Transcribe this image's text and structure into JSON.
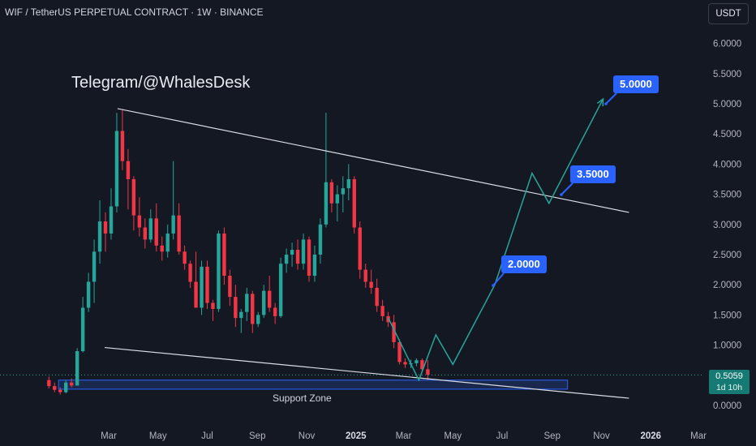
{
  "header": {
    "title": "WIF / TetherUS PERPETUAL CONTRACT · 1W · BINANCE",
    "currency_button": "USDT"
  },
  "watermark": "Telegram/@WhalesDesk",
  "colors": {
    "background": "#141823",
    "up_candle": "#26a69a",
    "down_candle": "#f23645",
    "projection": "#26a69a",
    "target_label": "#2962ff",
    "trendline": "#d9dce3",
    "zone_fill": "#1e2d5c",
    "zone_border": "#2962ff",
    "current_price_line": "#26a69a"
  },
  "annotations": {
    "support_zone_label": "Support Zone",
    "targets": [
      {
        "label": "5.0000",
        "price": 5.0
      },
      {
        "label": "3.5000",
        "price": 3.5
      },
      {
        "label": "2.0000",
        "price": 2.0
      }
    ],
    "current_price": "0.5059",
    "countdown": "1d 10h"
  },
  "chart_data": {
    "type": "candlestick",
    "title": "WIF / TetherUS PERPETUAL CONTRACT · 1W · BINANCE",
    "y_axis": {
      "ticks": [
        "6.0000",
        "5.5000",
        "5.0000",
        "4.5000",
        "4.0000",
        "3.5000",
        "3.0000",
        "2.5000",
        "2.0000",
        "1.5000",
        "1.0000",
        "0.0000"
      ],
      "tick_values": [
        6.0,
        5.5,
        5.0,
        4.5,
        4.0,
        3.5,
        3.0,
        2.5,
        2.0,
        1.5,
        1.0,
        0.0
      ],
      "ylim": [
        -0.1,
        6.3
      ],
      "side": "right"
    },
    "x_axis": {
      "ticks": [
        "Mar",
        "May",
        "Jul",
        "Sep",
        "Nov",
        "2025",
        "Mar",
        "May",
        "Jul",
        "Sep",
        "Nov",
        "2026",
        "Mar"
      ],
      "bold_ticks": [
        "2025",
        "2026"
      ],
      "tick_dates": [
        "2024-03-01",
        "2024-05-01",
        "2024-07-01",
        "2024-09-01",
        "2024-11-01",
        "2025-01-01",
        "2025-03-01",
        "2025-05-01",
        "2025-07-01",
        "2025-09-01",
        "2025-11-01",
        "2026-01-01",
        "2026-03-01"
      ],
      "xlim": [
        "2023-12-01",
        "2026-04-15"
      ]
    },
    "candles_ohlc": [
      [
        0.42,
        0.48,
        0.28,
        0.32
      ],
      [
        0.32,
        0.38,
        0.22,
        0.26
      ],
      [
        0.26,
        0.3,
        0.18,
        0.22
      ],
      [
        0.22,
        0.42,
        0.2,
        0.38
      ],
      [
        0.38,
        0.45,
        0.3,
        0.33
      ],
      [
        0.33,
        0.95,
        0.33,
        0.9
      ],
      [
        0.9,
        1.8,
        0.88,
        1.62
      ],
      [
        1.62,
        2.2,
        1.55,
        2.05
      ],
      [
        2.05,
        2.75,
        1.7,
        2.55
      ],
      [
        2.55,
        3.4,
        2.35,
        3.05
      ],
      [
        3.05,
        3.2,
        2.55,
        2.85
      ],
      [
        2.85,
        3.6,
        2.75,
        3.3
      ],
      [
        3.3,
        4.85,
        3.2,
        4.55
      ],
      [
        4.55,
        4.9,
        3.9,
        4.05
      ],
      [
        4.05,
        4.25,
        3.25,
        3.75
      ],
      [
        3.75,
        3.8,
        2.9,
        3.15
      ],
      [
        3.15,
        3.45,
        2.8,
        2.95
      ],
      [
        2.95,
        3.1,
        2.6,
        2.75
      ],
      [
        2.75,
        3.25,
        2.7,
        3.1
      ],
      [
        3.1,
        3.35,
        2.55,
        2.65
      ],
      [
        2.65,
        2.8,
        2.4,
        2.55
      ],
      [
        2.55,
        3.0,
        2.45,
        2.85
      ],
      [
        2.85,
        4.05,
        2.75,
        3.15
      ],
      [
        3.15,
        3.35,
        2.5,
        2.55
      ],
      [
        2.55,
        2.65,
        2.25,
        2.35
      ],
      [
        2.35,
        2.4,
        1.95,
        2.05
      ],
      [
        2.05,
        2.55,
        1.8,
        1.62
      ],
      [
        1.62,
        2.4,
        1.5,
        2.3
      ],
      [
        2.3,
        2.4,
        1.6,
        1.7
      ],
      [
        1.7,
        1.75,
        1.4,
        1.6
      ],
      [
        1.6,
        2.9,
        1.55,
        2.85
      ],
      [
        2.85,
        2.95,
        2.0,
        2.15
      ],
      [
        2.15,
        2.25,
        1.65,
        1.8
      ],
      [
        1.8,
        2.0,
        1.3,
        1.45
      ],
      [
        1.45,
        1.6,
        1.2,
        1.55
      ],
      [
        1.55,
        1.95,
        1.4,
        1.85
      ],
      [
        1.85,
        1.9,
        1.2,
        1.35
      ],
      [
        1.35,
        1.55,
        1.3,
        1.5
      ],
      [
        1.5,
        2.0,
        1.45,
        1.9
      ],
      [
        1.9,
        2.15,
        1.55,
        1.62
      ],
      [
        1.62,
        1.7,
        1.35,
        1.48
      ],
      [
        1.48,
        2.45,
        1.45,
        2.35
      ],
      [
        2.35,
        2.6,
        2.2,
        2.5
      ],
      [
        2.5,
        2.7,
        2.3,
        2.58
      ],
      [
        2.58,
        2.75,
        2.25,
        2.35
      ],
      [
        2.35,
        2.85,
        2.25,
        2.75
      ],
      [
        2.75,
        2.8,
        2.05,
        2.15
      ],
      [
        2.15,
        2.65,
        2.05,
        2.5
      ],
      [
        2.5,
        3.1,
        2.35,
        3.0
      ],
      [
        3.0,
        4.85,
        2.95,
        3.7
      ],
      [
        3.7,
        3.75,
        3.2,
        3.35
      ],
      [
        3.35,
        3.65,
        3.05,
        3.5
      ],
      [
        3.5,
        3.8,
        3.2,
        3.6
      ],
      [
        3.6,
        4.0,
        3.4,
        3.75
      ],
      [
        3.75,
        3.8,
        2.85,
        2.95
      ],
      [
        2.95,
        3.05,
        2.1,
        2.25
      ],
      [
        2.25,
        2.35,
        1.95,
        2.05
      ],
      [
        2.05,
        2.25,
        1.85,
        1.95
      ],
      [
        1.95,
        2.1,
        1.55,
        1.65
      ],
      [
        1.65,
        1.75,
        1.4,
        1.48
      ],
      [
        1.48,
        1.55,
        1.3,
        1.38
      ],
      [
        1.38,
        1.5,
        0.95,
        1.05
      ],
      [
        1.05,
        1.1,
        0.68,
        0.72
      ],
      [
        0.72,
        0.78,
        0.62,
        0.68
      ],
      [
        0.68,
        0.76,
        0.62,
        0.7
      ],
      [
        0.7,
        0.78,
        0.65,
        0.75
      ],
      [
        0.75,
        0.78,
        0.55,
        0.6
      ],
      [
        0.6,
        0.75,
        0.42,
        0.51
      ]
    ],
    "candles_start": "2023-12-18",
    "candle_interval_days": 7,
    "trendlines": [
      {
        "name": "upper",
        "points": [
          [
            "2024-03-12",
            4.92
          ],
          [
            "2025-12-05",
            3.2
          ]
        ]
      },
      {
        "name": "lower",
        "points": [
          [
            "2024-02-25",
            0.96
          ],
          [
            "2025-12-05",
            0.12
          ]
        ]
      }
    ],
    "projection_path": [
      [
        "2025-02-10",
        1.45
      ],
      [
        "2025-03-20",
        0.42
      ],
      [
        "2025-04-10",
        1.17
      ],
      [
        "2025-05-01",
        0.68
      ],
      [
        "2025-06-22",
        2.0
      ],
      [
        "2025-08-07",
        3.85
      ],
      [
        "2025-08-28",
        3.35
      ],
      [
        "2025-11-03",
        5.08
      ]
    ],
    "support_zone": {
      "price_low": 0.27,
      "price_high": 0.42,
      "start": "2024-01-01",
      "end": "2025-09-20"
    },
    "current_price": 0.5059
  }
}
